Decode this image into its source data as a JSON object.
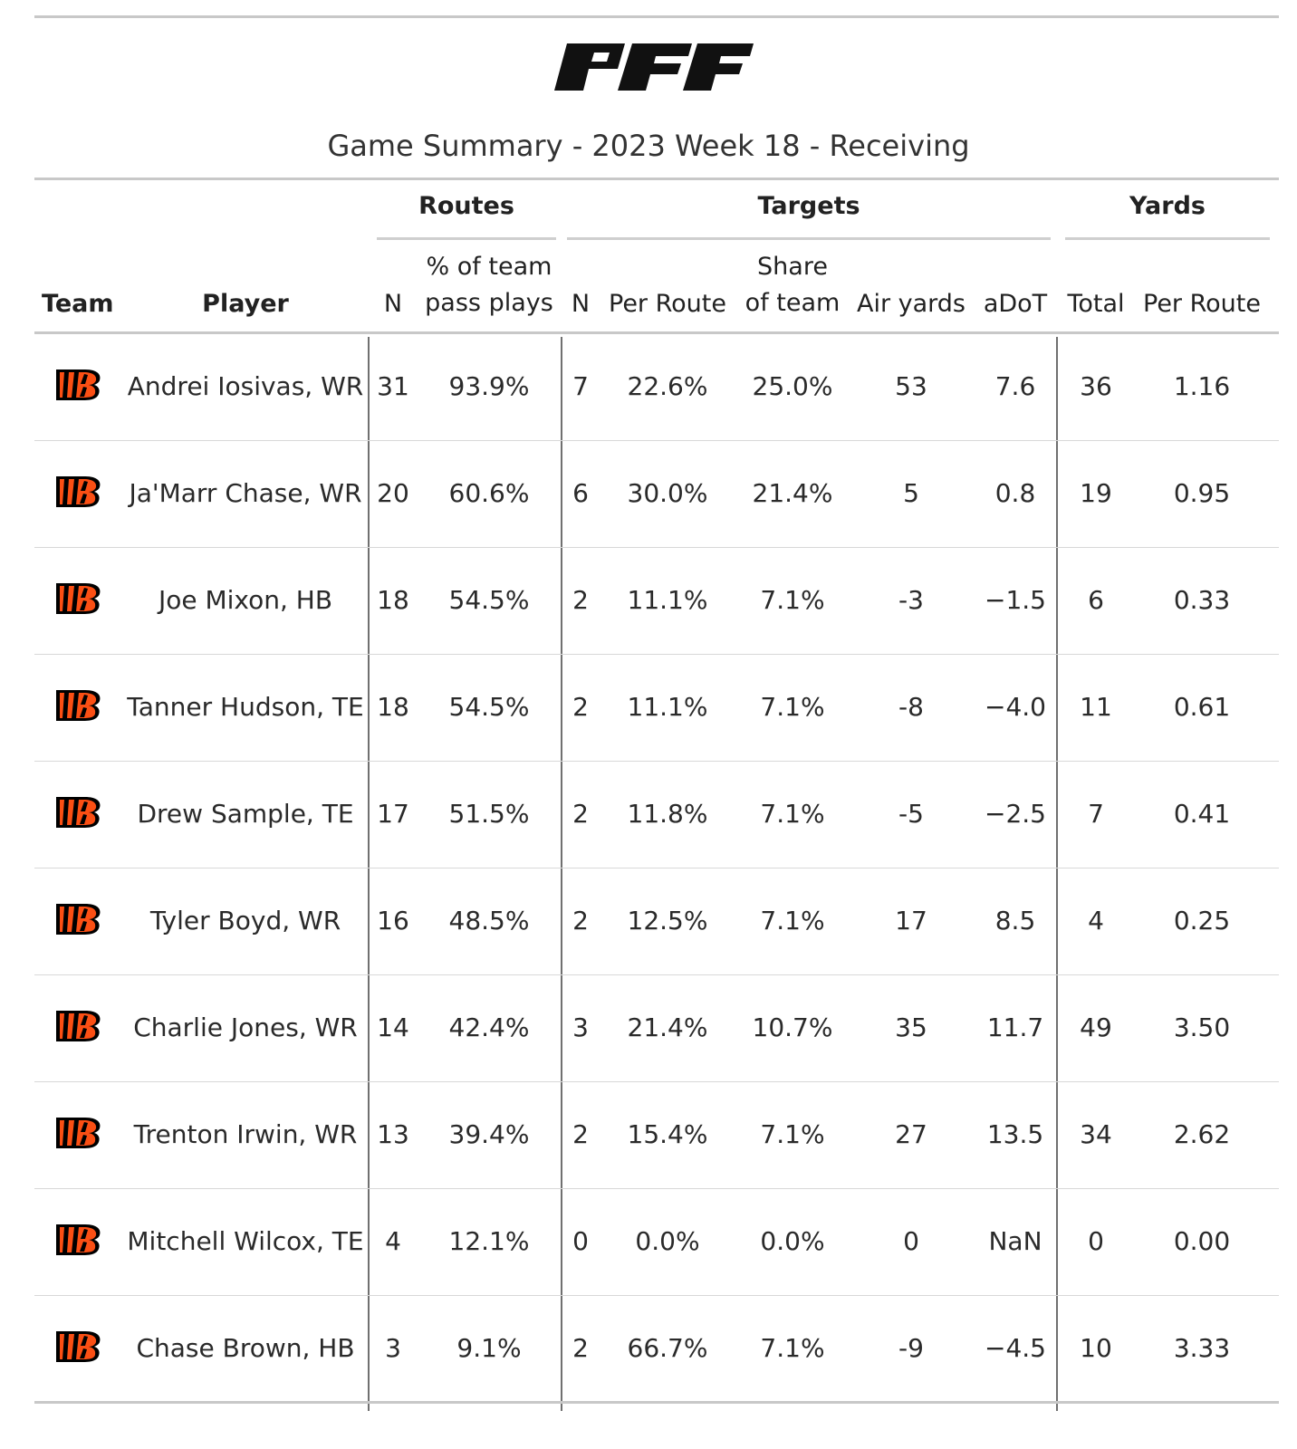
{
  "brand": "PFF",
  "title": "Game Summary - 2023 Week 18 - Receiving",
  "spanners": [
    "Routes",
    "Targets",
    "Yards"
  ],
  "columns": {
    "team": "Team",
    "player": "Player",
    "routes_n": "N",
    "routes_pct": [
      "% of team",
      "pass plays"
    ],
    "targets_n": "N",
    "targets_per_route": "Per Route",
    "targets_share": [
      "Share",
      "of team"
    ],
    "air_yards": "Air yards",
    "adot": "aDoT",
    "yards_total": "Total",
    "yards_per_route": "Per Route"
  },
  "team_logo_icon": "bengals-logo-icon",
  "colors": {
    "logo_orange": "#FB4F14",
    "logo_black": "#000000"
  },
  "chart_data": {
    "type": "table",
    "title": "Game Summary - 2023 Week 18 - Receiving",
    "rows": [
      {
        "player": "Andrei Iosivas, WR",
        "routes_n": "31",
        "routes_pct": "93.9%",
        "targets_n": "7",
        "targets_per_route": "22.6%",
        "targets_share": "25.0%",
        "air_yards": "53",
        "adot": "7.6",
        "yards_total": "36",
        "yards_per_route": "1.16"
      },
      {
        "player": "Ja'Marr Chase, WR",
        "routes_n": "20",
        "routes_pct": "60.6%",
        "targets_n": "6",
        "targets_per_route": "30.0%",
        "targets_share": "21.4%",
        "air_yards": "5",
        "adot": "0.8",
        "yards_total": "19",
        "yards_per_route": "0.95"
      },
      {
        "player": "Joe Mixon, HB",
        "routes_n": "18",
        "routes_pct": "54.5%",
        "targets_n": "2",
        "targets_per_route": "11.1%",
        "targets_share": "7.1%",
        "air_yards": "-3",
        "adot": "−1.5",
        "yards_total": "6",
        "yards_per_route": "0.33"
      },
      {
        "player": "Tanner Hudson, TE",
        "routes_n": "18",
        "routes_pct": "54.5%",
        "targets_n": "2",
        "targets_per_route": "11.1%",
        "targets_share": "7.1%",
        "air_yards": "-8",
        "adot": "−4.0",
        "yards_total": "11",
        "yards_per_route": "0.61"
      },
      {
        "player": "Drew Sample, TE",
        "routes_n": "17",
        "routes_pct": "51.5%",
        "targets_n": "2",
        "targets_per_route": "11.8%",
        "targets_share": "7.1%",
        "air_yards": "-5",
        "adot": "−2.5",
        "yards_total": "7",
        "yards_per_route": "0.41"
      },
      {
        "player": "Tyler Boyd, WR",
        "routes_n": "16",
        "routes_pct": "48.5%",
        "targets_n": "2",
        "targets_per_route": "12.5%",
        "targets_share": "7.1%",
        "air_yards": "17",
        "adot": "8.5",
        "yards_total": "4",
        "yards_per_route": "0.25"
      },
      {
        "player": "Charlie Jones, WR",
        "routes_n": "14",
        "routes_pct": "42.4%",
        "targets_n": "3",
        "targets_per_route": "21.4%",
        "targets_share": "10.7%",
        "air_yards": "35",
        "adot": "11.7",
        "yards_total": "49",
        "yards_per_route": "3.50"
      },
      {
        "player": "Trenton Irwin, WR",
        "routes_n": "13",
        "routes_pct": "39.4%",
        "targets_n": "2",
        "targets_per_route": "15.4%",
        "targets_share": "7.1%",
        "air_yards": "27",
        "adot": "13.5",
        "yards_total": "34",
        "yards_per_route": "2.62"
      },
      {
        "player": "Mitchell Wilcox, TE",
        "routes_n": "4",
        "routes_pct": "12.1%",
        "targets_n": "0",
        "targets_per_route": "0.0%",
        "targets_share": "0.0%",
        "air_yards": "0",
        "adot": "NaN",
        "yards_total": "0",
        "yards_per_route": "0.00"
      },
      {
        "player": "Chase Brown, HB",
        "routes_n": "3",
        "routes_pct": "9.1%",
        "targets_n": "2",
        "targets_per_route": "66.7%",
        "targets_share": "7.1%",
        "air_yards": "-9",
        "adot": "−4.5",
        "yards_total": "10",
        "yards_per_route": "3.33"
      }
    ]
  }
}
